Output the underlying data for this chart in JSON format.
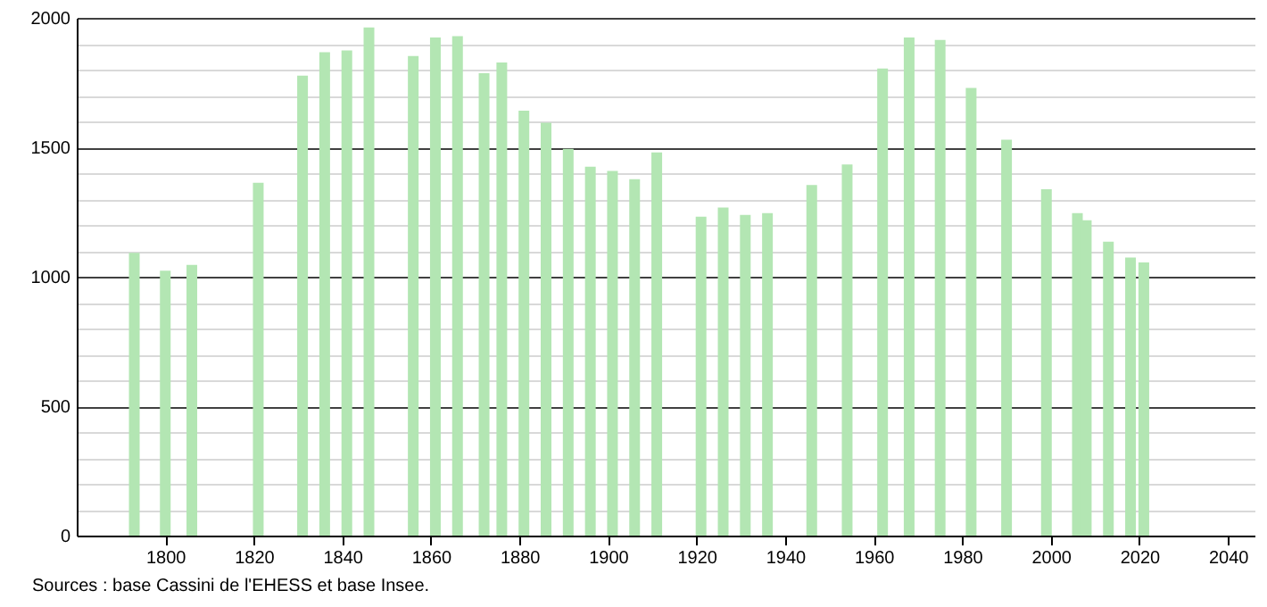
{
  "chart_data": {
    "type": "bar",
    "x": [
      1793,
      1800,
      1806,
      1821,
      1831,
      1836,
      1841,
      1846,
      1856,
      1861,
      1866,
      1872,
      1876,
      1881,
      1886,
      1891,
      1896,
      1901,
      1906,
      1911,
      1921,
      1926,
      1931,
      1936,
      1946,
      1954,
      1962,
      1968,
      1975,
      1982,
      1990,
      1999,
      2006,
      2008,
      2013,
      2018,
      2021
    ],
    "values": [
      1092,
      1023,
      1046,
      1363,
      1777,
      1867,
      1874,
      1963,
      1853,
      1924,
      1929,
      1786,
      1828,
      1641,
      1595,
      1494,
      1425,
      1409,
      1377,
      1480,
      1232,
      1267,
      1239,
      1246,
      1354,
      1434,
      1804,
      1924,
      1915,
      1729,
      1529,
      1338,
      1246,
      1218,
      1135,
      1074,
      1055
    ],
    "color": "#b3e6b3",
    "xlim": [
      1780,
      2046
    ],
    "xticks": [
      1800,
      1820,
      1840,
      1860,
      1880,
      1900,
      1920,
      1940,
      1960,
      1980,
      2000,
      2020,
      2040
    ],
    "ylim": [
      0,
      2000
    ],
    "yticks": [
      0,
      {
        "value": 100,
        "label": null
      },
      {
        "value": 200,
        "label": null
      },
      {
        "value": 300,
        "label": null
      },
      {
        "value": 400,
        "label": null
      },
      500,
      {
        "value": 600,
        "label": null
      },
      {
        "value": 700,
        "label": null
      },
      {
        "value": 800,
        "label": null
      },
      {
        "value": 900,
        "label": null
      },
      1000,
      {
        "value": 1100,
        "label": null
      },
      {
        "value": 1200,
        "label": null
      },
      {
        "value": 1300,
        "label": null
      },
      {
        "value": 1400,
        "label": null
      },
      1500,
      {
        "value": 1600,
        "label": null
      },
      {
        "value": 1700,
        "label": null
      },
      {
        "value": 1800,
        "label": null
      },
      {
        "value": 1900,
        "label": null
      },
      2000
    ],
    "grid": "y",
    "annotations": [
      "Sources : base Cassini de l'EHESS et base Insee."
    ]
  }
}
